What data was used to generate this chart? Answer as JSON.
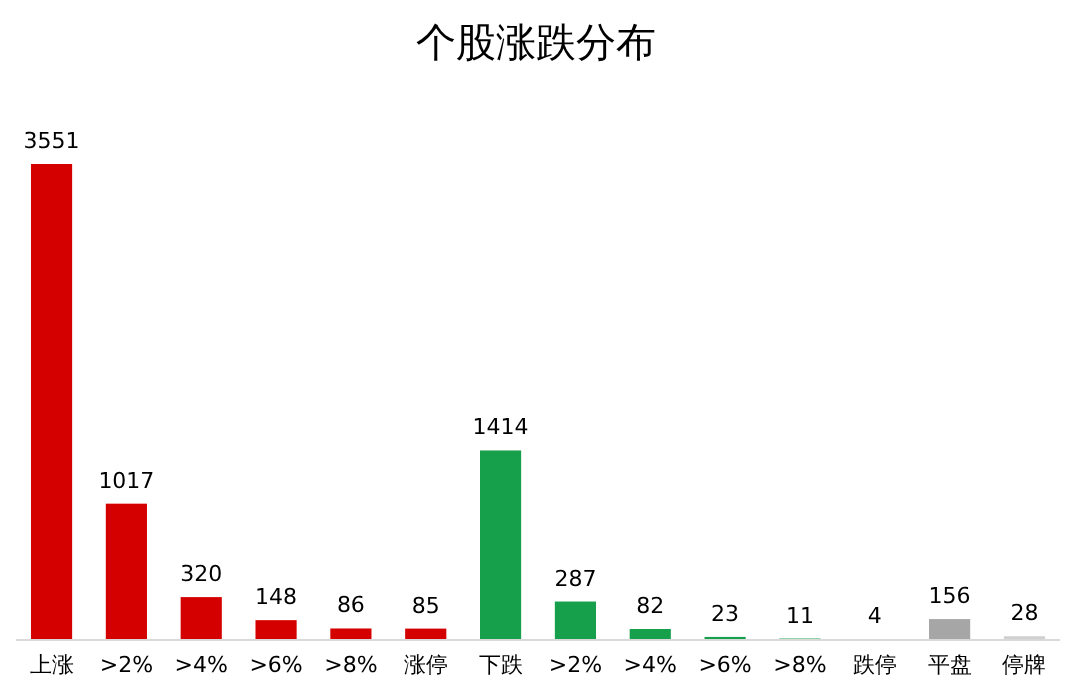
{
  "chart_data": {
    "type": "bar",
    "title": "个股涨跌分布",
    "categories": [
      "上涨",
      ">2%",
      ">4%",
      ">6%",
      ">8%",
      "涨停",
      "下跌",
      ">2%",
      ">4%",
      ">6%",
      ">8%",
      "跌停",
      "平盘",
      "停牌"
    ],
    "values": [
      3551,
      1017,
      320,
      148,
      86,
      85,
      1414,
      287,
      82,
      23,
      11,
      4,
      156,
      28
    ],
    "colors": [
      "#d40000",
      "#d40000",
      "#d40000",
      "#d40000",
      "#d40000",
      "#d40000",
      "#16a04c",
      "#16a04c",
      "#16a04c",
      "#16a04c",
      "#16a04c",
      "#16a04c",
      "#a6a6a6",
      "#d0d0d0"
    ],
    "data_labels": true
  }
}
